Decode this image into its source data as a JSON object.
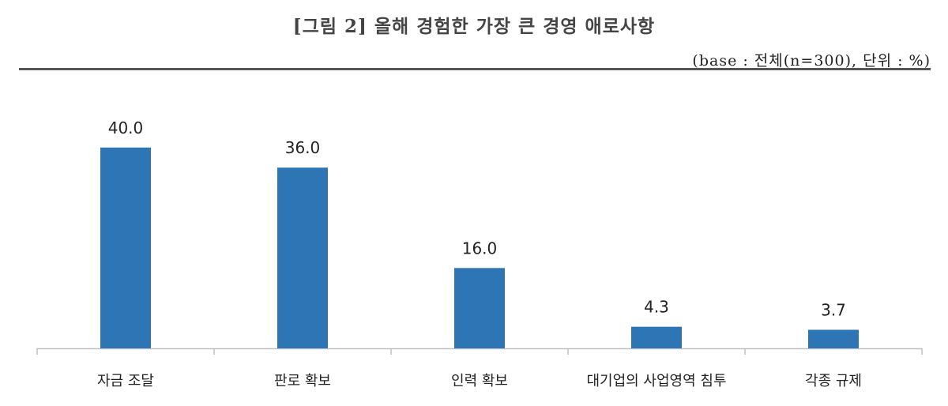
{
  "header": {
    "title": "[그림 2] 올해 경험한 가장 큰 경영 애로사항",
    "base_note": "(base : 전체(n=300), 단위 : %)"
  },
  "chart_data": {
    "type": "bar",
    "title": "",
    "xlabel": "",
    "ylabel": "",
    "categories": [
      "자금 조달",
      "판로 확보",
      "인력 확보",
      "대기업의 사업영역 침투",
      "각종 규제"
    ],
    "values": [
      40.0,
      36.0,
      16.0,
      4.3,
      3.7
    ],
    "value_labels": [
      "40.0",
      "36.0",
      "16.0",
      "4.3",
      "3.7"
    ],
    "ylim": [
      0,
      45
    ],
    "grid": false,
    "legend": "none",
    "bar_color": "#2E75B6",
    "axis_color": "#BFBFBF"
  }
}
